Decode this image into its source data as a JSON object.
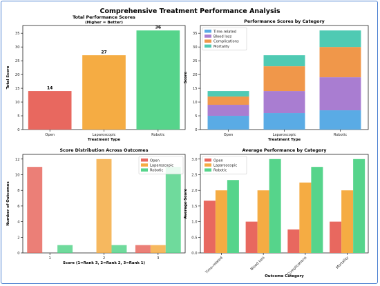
{
  "suptitle": "Comprehensive Treatment Performance Analysis",
  "colors": {
    "open": "#e8685f",
    "laparoscopic": "#f5ac43",
    "robotic": "#56d48b",
    "time_related": "#5aabe5",
    "blood_loss": "#a97dd1",
    "complications": "#f0974a",
    "mortality": "#4fcab3"
  },
  "chart_data": [
    {
      "id": "total",
      "type": "bar",
      "title": "Total Performance Scores",
      "subtitle": "(Higher = Better)",
      "xlabel": "Treatment Type",
      "ylabel": "Total Score",
      "categories": [
        "Open",
        "Laparoscopic",
        "Robotic"
      ],
      "values": [
        14,
        27,
        36
      ],
      "data_labels": [
        "14",
        "27",
        "36"
      ],
      "ylim": [
        0,
        37.8
      ],
      "yticks": [
        0,
        5,
        10,
        15,
        20,
        25,
        30,
        35
      ],
      "grid": false
    },
    {
      "id": "category",
      "type": "bar",
      "stacked": true,
      "title": "Performance Scores by Category",
      "xlabel": "Treatment Type",
      "ylabel": "Score",
      "categories": [
        "Open",
        "Laparoscopic",
        "Robotic"
      ],
      "series": [
        {
          "name": "Time-related",
          "values": [
            5,
            6,
            7
          ]
        },
        {
          "name": "Blood loss",
          "values": [
            4,
            8,
            12
          ]
        },
        {
          "name": "Complications",
          "values": [
            3,
            9,
            11
          ]
        },
        {
          "name": "Mortality",
          "values": [
            2,
            4,
            6
          ]
        }
      ],
      "ylim": [
        0,
        37.8
      ],
      "yticks": [
        0,
        5,
        10,
        15,
        20,
        25,
        30,
        35
      ],
      "legend": "top-left",
      "grid": false
    },
    {
      "id": "distribution",
      "type": "bar",
      "title": "Score Distribution Across Outcomes",
      "xlabel": "Score (1=Rank 3, 2=Rank 2, 3=Rank 1)",
      "ylabel": "Number of Outcomes",
      "categories": [
        "1",
        "2",
        "3"
      ],
      "series": [
        {
          "name": "Open",
          "values": [
            11,
            0,
            1
          ]
        },
        {
          "name": "Laparoscopic",
          "values": [
            0,
            12,
            1
          ]
        },
        {
          "name": "Robotic",
          "values": [
            1,
            1,
            11
          ]
        }
      ],
      "ylim": [
        0,
        12.6
      ],
      "yticks": [
        0,
        2,
        4,
        6,
        8,
        10,
        12
      ],
      "legend": "top-right",
      "grid": false
    },
    {
      "id": "average",
      "type": "bar",
      "title": "Average Performance by Category",
      "xlabel": "Outcome Category",
      "ylabel": "Average Score",
      "categories": [
        "Time-related",
        "Blood loss",
        "Complications",
        "Mortality"
      ],
      "series": [
        {
          "name": "Open",
          "values": [
            1.67,
            1.0,
            0.75,
            1.0
          ]
        },
        {
          "name": "Laparoscopic",
          "values": [
            2.0,
            2.0,
            2.25,
            2.0
          ]
        },
        {
          "name": "Robotic",
          "values": [
            2.33,
            3.0,
            2.75,
            3.0
          ]
        }
      ],
      "ylim": [
        0,
        3.15
      ],
      "yticks": [
        0.0,
        0.5,
        1.0,
        1.5,
        2.0,
        2.5,
        3.0
      ],
      "legend": "top-left",
      "grid": false
    }
  ]
}
